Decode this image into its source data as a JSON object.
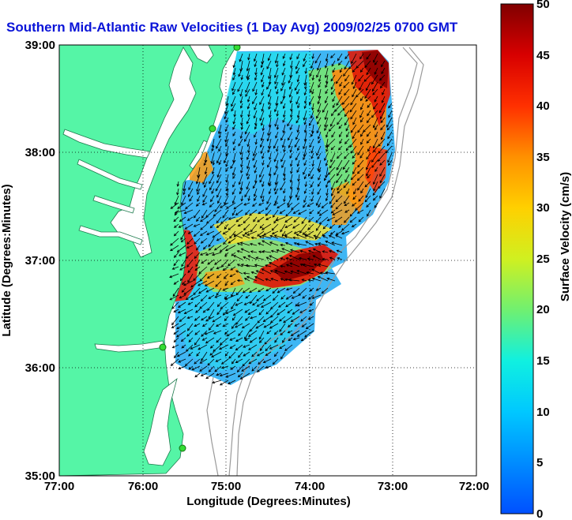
{
  "title": "Southern Mid-Atlantic Raw Velocities (1 Day Avg) 2009/02/25 0700 GMT",
  "x_axis": {
    "label": "Longitude (Degrees:Minutes)",
    "ticks": [
      "77:00",
      "76:00",
      "75:00",
      "74:00",
      "73:00",
      "72:00"
    ]
  },
  "y_axis": {
    "label": "Latitude (Degrees:Minutes)",
    "ticks": [
      "39:00",
      "38:00",
      "37:00",
      "36:00",
      "35:00"
    ]
  },
  "colorbar": {
    "label": "Surface Velocity (cm/s)",
    "ticks": [
      "50",
      "45",
      "40",
      "35",
      "30",
      "25",
      "20",
      "15",
      "10",
      "5",
      "0"
    ],
    "range": [
      0,
      50
    ]
  },
  "map": {
    "lon_range": [
      -77,
      -72
    ],
    "lat_range": [
      35,
      39
    ],
    "grid": "dotted",
    "land_color": "#55f5a6",
    "bathymetry_color": "#9a9a9a",
    "arrow_color": "#000000",
    "station_color": "#33dd33"
  }
}
